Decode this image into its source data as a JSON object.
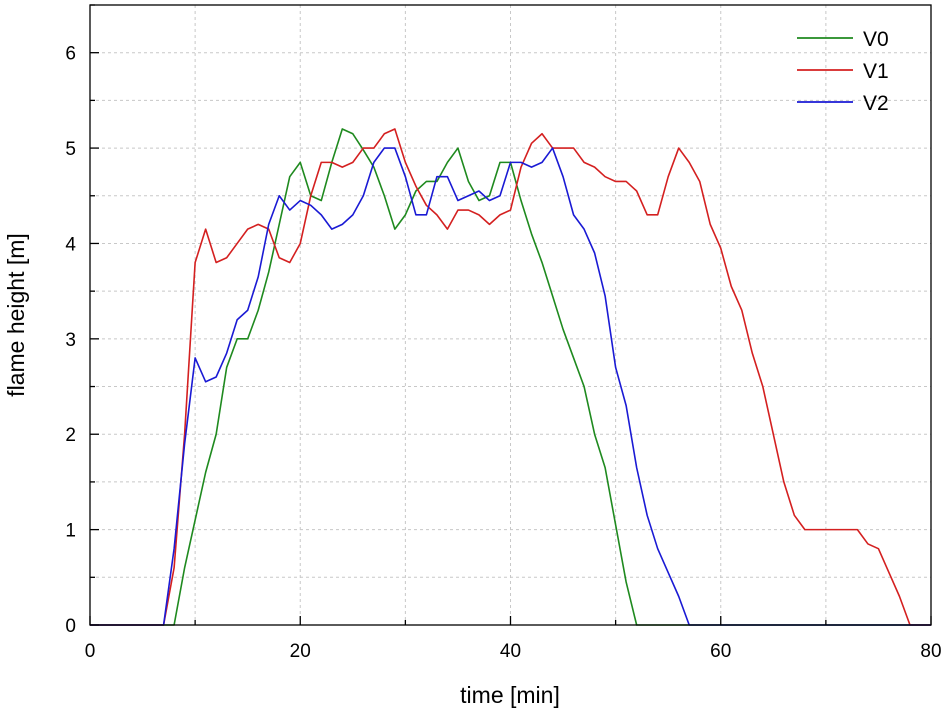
{
  "chart_data": {
    "type": "line",
    "title": "",
    "xlabel": "time [min]",
    "ylabel": "flame height [m]",
    "xlim": [
      0,
      80
    ],
    "ylim": [
      0,
      6.5
    ],
    "xticks": [
      "0",
      "20",
      "40",
      "60",
      "80"
    ],
    "yticks": [
      "0",
      "1",
      "2",
      "3",
      "4",
      "5",
      "6"
    ],
    "grid": true,
    "legend": "top-right",
    "series": [
      {
        "name": "V0",
        "color": "#1f8a1f",
        "x": [
          0,
          7,
          8,
          9,
          10,
          11,
          12,
          13,
          14,
          15,
          16,
          17,
          18,
          19,
          20,
          21,
          22,
          23,
          24,
          25,
          26,
          27,
          28,
          29,
          30,
          31,
          32,
          33,
          34,
          35,
          36,
          37,
          38,
          39,
          40,
          41,
          42,
          43,
          44,
          45,
          46,
          47,
          48,
          49,
          50,
          51,
          52,
          80
        ],
        "y": [
          0,
          0,
          0,
          0.6,
          1.1,
          1.6,
          2.0,
          2.7,
          3.0,
          3.0,
          3.3,
          3.7,
          4.2,
          4.7,
          4.85,
          4.5,
          4.45,
          4.85,
          5.2,
          5.15,
          4.98,
          4.8,
          4.5,
          4.15,
          4.3,
          4.55,
          4.65,
          4.65,
          4.85,
          5.0,
          4.65,
          4.45,
          4.5,
          4.85,
          4.85,
          4.45,
          4.1,
          3.8,
          3.45,
          3.1,
          2.8,
          2.5,
          2.0,
          1.65,
          1.05,
          0.45,
          0,
          0
        ]
      },
      {
        "name": "V1",
        "color": "#d42020",
        "x": [
          0,
          7,
          8,
          9,
          10,
          11,
          12,
          13,
          14,
          15,
          16,
          17,
          18,
          19,
          20,
          21,
          22,
          23,
          24,
          25,
          26,
          27,
          28,
          29,
          30,
          31,
          32,
          33,
          34,
          35,
          36,
          37,
          38,
          39,
          40,
          41,
          42,
          43,
          44,
          45,
          46,
          47,
          48,
          49,
          50,
          51,
          52,
          53,
          54,
          55,
          56,
          57,
          58,
          59,
          60,
          61,
          62,
          63,
          64,
          65,
          66,
          67,
          68,
          69,
          70,
          71,
          72,
          73,
          74,
          75,
          76,
          77,
          78,
          80
        ],
        "y": [
          0,
          0,
          0.6,
          2.0,
          3.8,
          4.15,
          3.8,
          3.85,
          4.0,
          4.15,
          4.2,
          4.15,
          3.85,
          3.8,
          4.0,
          4.5,
          4.85,
          4.85,
          4.8,
          4.85,
          5.0,
          5.0,
          5.15,
          5.2,
          4.85,
          4.6,
          4.4,
          4.3,
          4.15,
          4.35,
          4.35,
          4.3,
          4.2,
          4.3,
          4.35,
          4.8,
          5.05,
          5.15,
          5.0,
          5.0,
          5.0,
          4.85,
          4.8,
          4.7,
          4.65,
          4.65,
          4.55,
          4.3,
          4.3,
          4.7,
          5.0,
          4.85,
          4.65,
          4.2,
          3.95,
          3.55,
          3.3,
          2.85,
          2.5,
          2.0,
          1.5,
          1.15,
          1.0,
          1.0,
          1.0,
          1.0,
          1.0,
          1.0,
          0.85,
          0.8,
          0.55,
          0.3,
          0,
          0
        ]
      },
      {
        "name": "V2",
        "color": "#1a1ad4",
        "x": [
          0,
          7,
          8,
          9,
          10,
          11,
          12,
          13,
          14,
          15,
          16,
          17,
          18,
          19,
          20,
          21,
          22,
          23,
          24,
          25,
          26,
          27,
          28,
          29,
          30,
          31,
          32,
          33,
          34,
          35,
          36,
          37,
          38,
          39,
          40,
          41,
          42,
          43,
          44,
          45,
          46,
          47,
          48,
          49,
          50,
          51,
          52,
          53,
          54,
          55,
          56,
          57,
          80
        ],
        "y": [
          0,
          0,
          0.8,
          1.9,
          2.8,
          2.55,
          2.6,
          2.85,
          3.2,
          3.3,
          3.65,
          4.2,
          4.5,
          4.35,
          4.45,
          4.4,
          4.3,
          4.15,
          4.2,
          4.3,
          4.5,
          4.85,
          5.0,
          5.0,
          4.7,
          4.3,
          4.3,
          4.7,
          4.7,
          4.45,
          4.5,
          4.55,
          4.45,
          4.5,
          4.85,
          4.85,
          4.8,
          4.85,
          5.0,
          4.7,
          4.3,
          4.15,
          3.9,
          3.45,
          2.7,
          2.3,
          1.65,
          1.15,
          0.8,
          0.55,
          0.3,
          0,
          0
        ]
      }
    ]
  }
}
